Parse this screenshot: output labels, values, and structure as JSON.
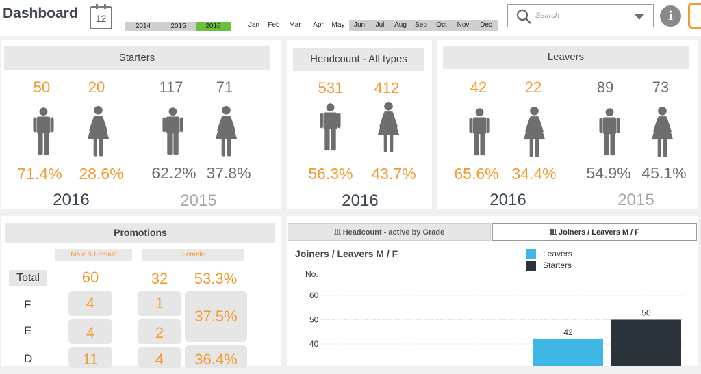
{
  "header": {
    "title": "Dashboard",
    "calendar_day": "12",
    "years": [
      {
        "label": "2014",
        "selected": false
      },
      {
        "label": "2015",
        "selected": false
      },
      {
        "label": "2016",
        "selected": true
      }
    ],
    "months": [
      "Jan",
      "Feb",
      "Mar",
      "Apr",
      "May",
      "Jun",
      "Jul",
      "Aug",
      "Sep",
      "Oct",
      "Nov",
      "Dec"
    ],
    "search_placeholder": "Search",
    "accent_selected": "#6abf3c"
  },
  "starters": {
    "title": "Starters",
    "y2016": {
      "male": "50",
      "female": "20",
      "male_pct": "71.4%",
      "female_pct": "28.6%",
      "label": "2016"
    },
    "y2015": {
      "male": "117",
      "female": "71",
      "male_pct": "62.2%",
      "female_pct": "37.8%",
      "label": "2015"
    }
  },
  "headcount": {
    "title": "Headcount - All types",
    "y2016": {
      "male": "531",
      "female": "412",
      "male_pct": "56.3%",
      "female_pct": "43.7%",
      "label": "2016"
    }
  },
  "leavers": {
    "title": "Leavers",
    "y2016": {
      "male": "42",
      "female": "22",
      "male_pct": "65.6%",
      "female_pct": "34.4%",
      "label": "2016"
    },
    "y2015": {
      "male": "89",
      "female": "73",
      "male_pct": "54.9%",
      "female_pct": "45.1%",
      "label": "2015"
    }
  },
  "promotions": {
    "title": "Promotions",
    "col_all": "Male & Female",
    "col_female": "Female",
    "total_label": "Total",
    "total": {
      "all": "60",
      "female": "32",
      "pct": "53.3%"
    },
    "rows": [
      {
        "grade": "F",
        "all": "4",
        "female": "1"
      },
      {
        "grade": "E",
        "all": "4",
        "female": "2"
      },
      {
        "grade": "D",
        "all": "11",
        "female": "4"
      }
    ],
    "pct_fe": "37.5%",
    "pct_d": "36.4%"
  },
  "tabs": [
    {
      "label": "Headcount - active by Grade",
      "active": false
    },
    {
      "label": "Joiners / Leavers M / F",
      "active": true
    }
  ],
  "chart_data": {
    "type": "bar",
    "title": "Joiners / Leavers M / F",
    "ylabel": "No.",
    "yticks": [
      40,
      50,
      60
    ],
    "ylim": [
      35,
      66
    ],
    "series": [
      {
        "name": "Leavers",
        "color": "#3fb6e6",
        "values": [
          42
        ]
      },
      {
        "name": "Starters",
        "color": "#2b343b",
        "values": [
          50
        ]
      }
    ],
    "legend": "top-center"
  }
}
